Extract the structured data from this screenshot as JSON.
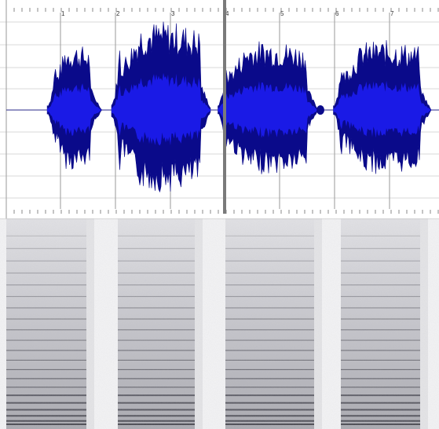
{
  "timeline": {
    "bar_numbers": [
      "1",
      "2",
      "3",
      "4",
      "5",
      "6",
      "7"
    ]
  },
  "waveform": {
    "fill_outer": "#0a0a8a",
    "fill_inner": "#1a1ae6",
    "segments": [
      {
        "start_bar": 0.93,
        "end_bar": 1.55,
        "level": 0.52
      },
      {
        "start_bar": 2.1,
        "end_bar": 3.55,
        "level": 0.7
      },
      {
        "start_bar": 4.05,
        "end_bar": 5.5,
        "level": 0.55
      },
      {
        "start_bar": 6.15,
        "end_bar": 7.55,
        "level": 0.55
      }
    ]
  },
  "playhead": {
    "bar": 4
  }
}
